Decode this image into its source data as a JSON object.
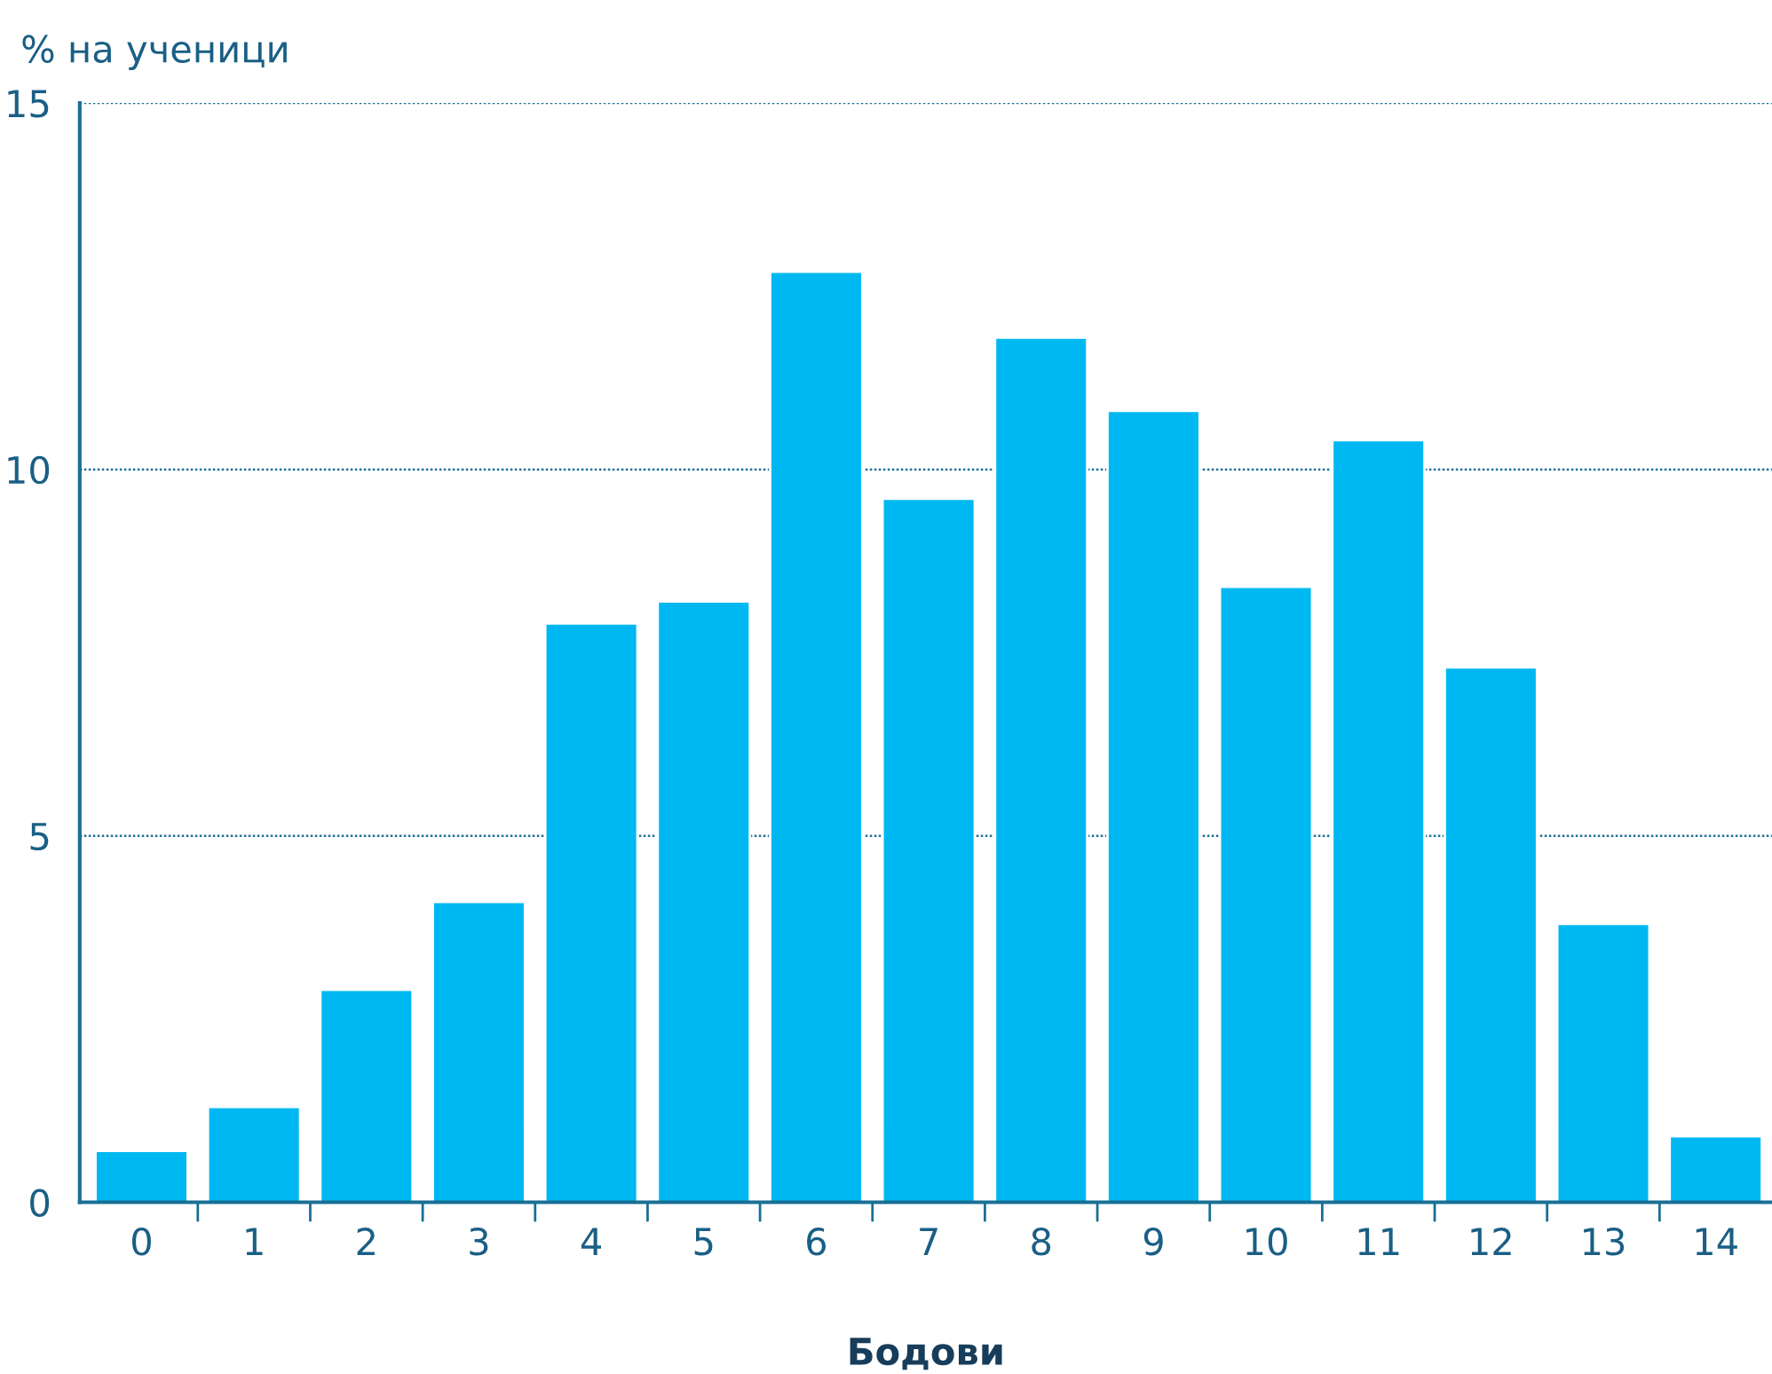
{
  "chart_data": {
    "type": "bar",
    "ylabel": "% на ученици",
    "xlabel": "Бодови",
    "categories": [
      "0",
      "1",
      "2",
      "3",
      "4",
      "5",
      "6",
      "7",
      "8",
      "9",
      "10",
      "11",
      "12",
      "13",
      "14"
    ],
    "values": [
      0.7,
      1.3,
      2.9,
      4.1,
      7.9,
      8.2,
      12.7,
      9.6,
      11.8,
      10.8,
      8.4,
      10.4,
      7.3,
      3.8,
      0.9
    ],
    "color": "#00b8f1",
    "ylim": [
      0,
      15
    ],
    "yticks": [
      0,
      5,
      10,
      15
    ],
    "grid": "y"
  }
}
